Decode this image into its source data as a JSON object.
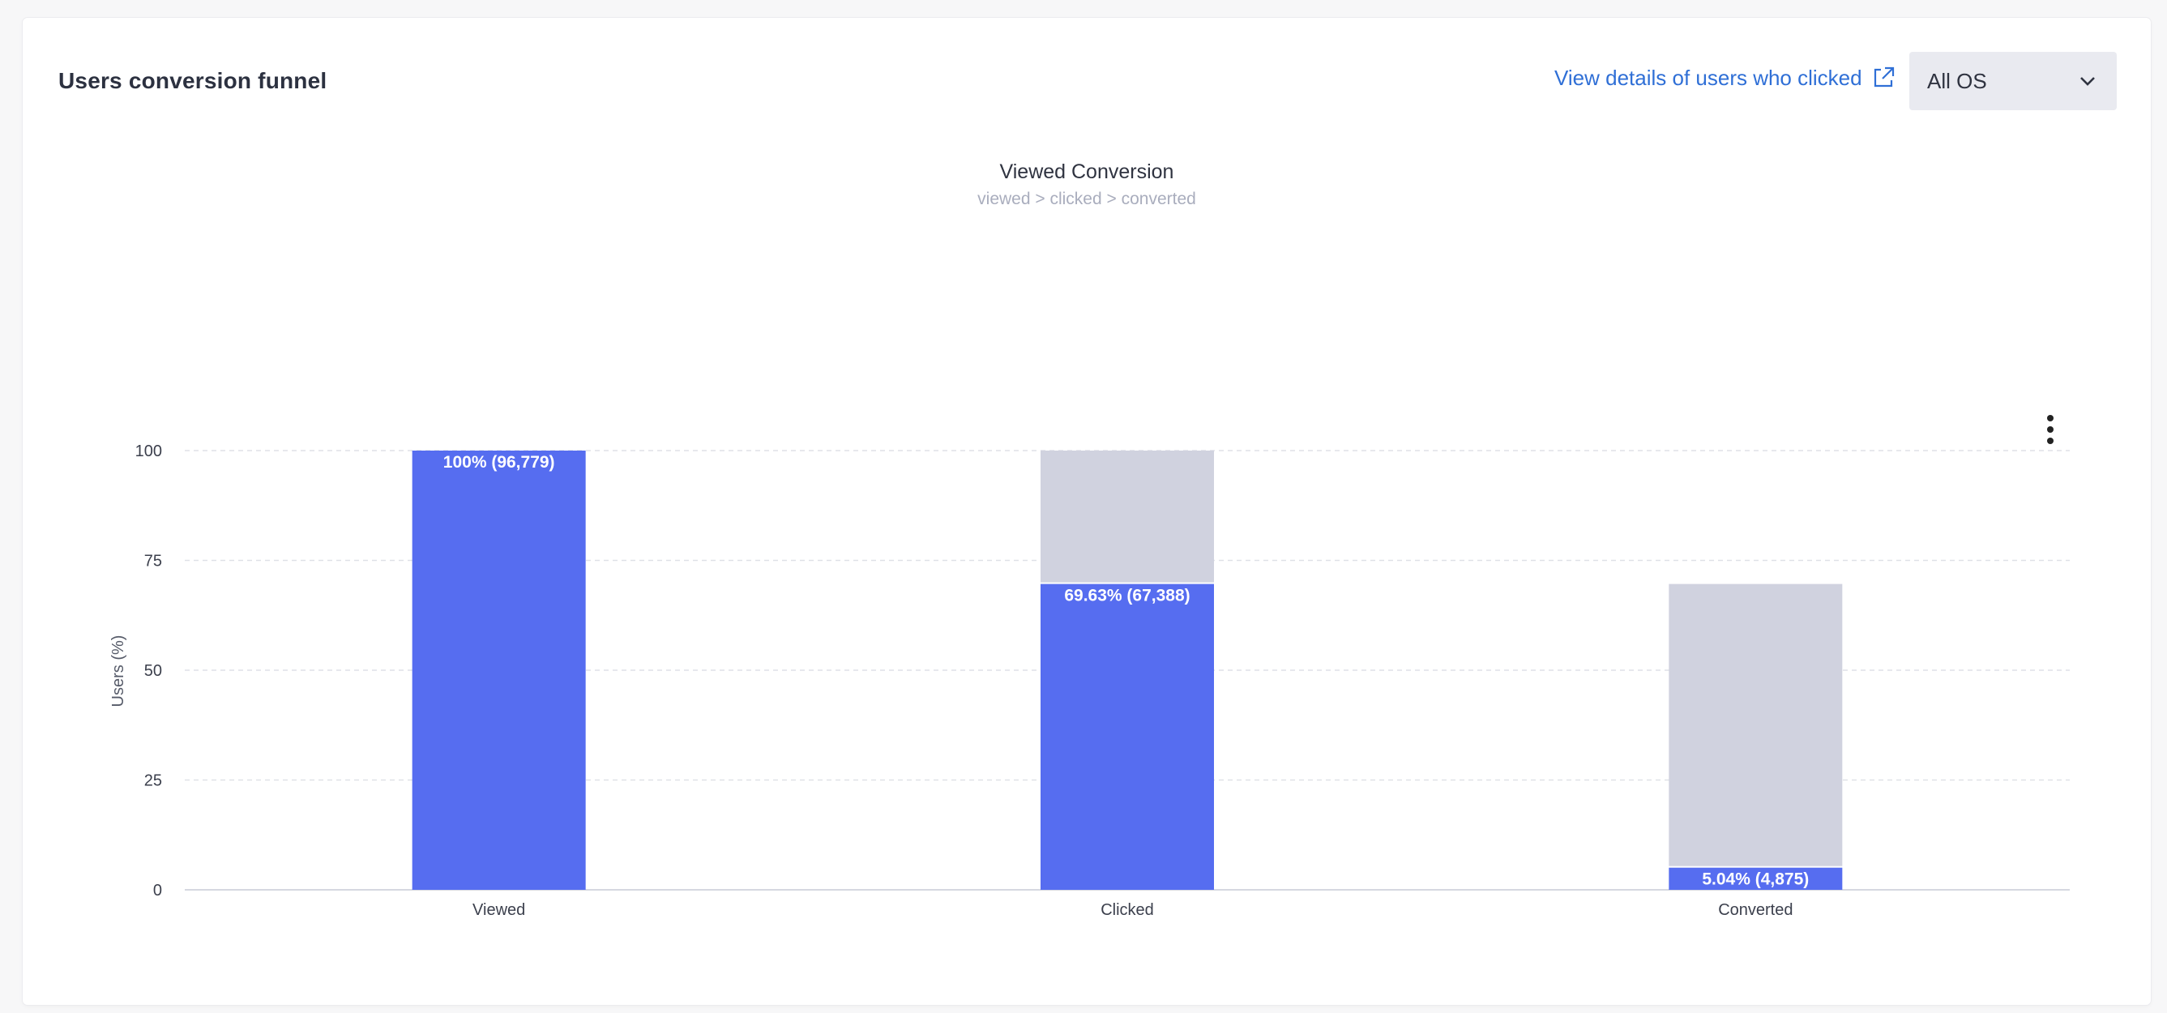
{
  "header": {
    "title": "Users conversion funnel",
    "details_link": "View details of users who clicked",
    "os_select": {
      "value": "All OS"
    }
  },
  "icons": {
    "external_link": "external-link-icon",
    "dropdown": "chevron-down-icon",
    "menu": "vertical-dots-icon"
  },
  "colors": {
    "converted_bar": "#566df0",
    "dropoff_bar": "#d0d2df",
    "link": "#2f6fd6"
  },
  "chart_data": {
    "type": "bar",
    "title": "Viewed Conversion",
    "subtitle": "viewed > clicked > converted",
    "ylabel": "Users (%)",
    "xlabel": "",
    "ylim": [
      0,
      100
    ],
    "yticks": [
      0,
      25,
      50,
      75,
      100
    ],
    "grid": true,
    "categories": [
      "Viewed",
      "Clicked",
      "Converted"
    ],
    "series": [
      {
        "values": [
          100,
          69.63,
          5.04
        ]
      }
    ],
    "previous_step_values": [
      100,
      100,
      69.63
    ],
    "data_labels": [
      "100% (96,779)",
      "69.63% (67,388)",
      "5.04% (4,875)"
    ]
  }
}
